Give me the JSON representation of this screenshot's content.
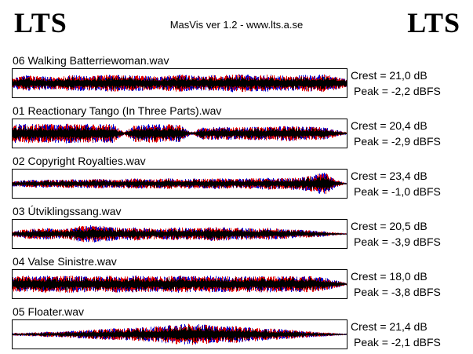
{
  "header": {
    "logo_left": "LTS",
    "logo_right": "LTS",
    "title": "MasVis ver 1.2 - www.lts.a.se"
  },
  "colors": {
    "channel_left": "#0000cc",
    "channel_right": "#dd0000",
    "overlap": "#000000",
    "background": "#ffffff"
  },
  "tracks": [
    {
      "name": "06 Walking Batterriewoman.wav",
      "crest": "Crest = 21,0 dB",
      "peak": "Peak = -2,2 dBFS",
      "envelope": [
        0.35,
        0.6,
        0.55,
        0.5,
        0.45,
        0.6,
        0.6,
        0.55,
        0.6,
        0.65,
        0.6,
        0.6,
        0.55,
        0.5,
        0.6,
        0.65,
        0.6,
        0.55,
        0.6,
        0.6,
        0.7,
        0.65,
        0.6,
        0.65,
        0.6,
        0.55,
        0.6,
        0.65,
        0.7,
        0.5,
        0.3
      ]
    },
    {
      "name": "01 Reactionary Tango (In Three Parts).wav",
      "crest": "Crest = 20,4 dB",
      "peak": "Peak = -2,9 dBFS",
      "envelope": [
        0.7,
        0.75,
        0.7,
        0.72,
        0.7,
        0.75,
        0.7,
        0.72,
        0.7,
        0.72,
        0.1,
        0.65,
        0.7,
        0.68,
        0.7,
        0.65,
        0.1,
        0.45,
        0.5,
        0.5,
        0.45,
        0.5,
        0.5,
        0.5,
        0.55,
        0.6,
        0.5,
        0.5,
        0.45,
        0.3,
        0.1
      ]
    },
    {
      "name": "02 Copyright Royalties.wav",
      "crest": "Crest = 23,4 dB",
      "peak": "Peak = -1,0 dBFS",
      "envelope": [
        0.2,
        0.25,
        0.3,
        0.3,
        0.3,
        0.35,
        0.3,
        0.35,
        0.35,
        0.3,
        0.35,
        0.4,
        0.35,
        0.35,
        0.4,
        0.35,
        0.4,
        0.35,
        0.4,
        0.4,
        0.35,
        0.4,
        0.4,
        0.45,
        0.4,
        0.45,
        0.5,
        0.6,
        0.9,
        0.3,
        0.05
      ]
    },
    {
      "name": "03 Útviklingssang.wav",
      "crest": "Crest = 20,5 dB",
      "peak": "Peak = -3,9 dBFS",
      "envelope": [
        0.2,
        0.35,
        0.4,
        0.45,
        0.35,
        0.4,
        0.6,
        0.65,
        0.6,
        0.5,
        0.45,
        0.5,
        0.45,
        0.4,
        0.45,
        0.5,
        0.45,
        0.45,
        0.55,
        0.5,
        0.45,
        0.45,
        0.4,
        0.45,
        0.4,
        0.35,
        0.3,
        0.25,
        0.2,
        0.1,
        0.05
      ]
    },
    {
      "name": "04 Valse Sinistre.wav",
      "crest": "Crest = 18,0 dB",
      "peak": "Peak = -3,8 dBFS",
      "envelope": [
        0.55,
        0.65,
        0.6,
        0.65,
        0.6,
        0.65,
        0.6,
        0.6,
        0.6,
        0.65,
        0.6,
        0.65,
        0.6,
        0.6,
        0.6,
        0.65,
        0.6,
        0.6,
        0.65,
        0.6,
        0.6,
        0.6,
        0.6,
        0.65,
        0.6,
        0.6,
        0.6,
        0.6,
        0.5,
        0.3,
        0.1
      ]
    },
    {
      "name": "05 Floater.wav",
      "crest": "Crest = 21,4 dB",
      "peak": "Peak = -2,1 dBFS",
      "envelope": [
        0.1,
        0.12,
        0.15,
        0.2,
        0.2,
        0.25,
        0.3,
        0.35,
        0.4,
        0.45,
        0.45,
        0.5,
        0.55,
        0.6,
        0.7,
        0.75,
        0.8,
        0.75,
        0.7,
        0.6,
        0.65,
        0.55,
        0.5,
        0.45,
        0.4,
        0.35,
        0.25,
        0.2,
        0.15,
        0.1,
        0.05
      ]
    }
  ]
}
